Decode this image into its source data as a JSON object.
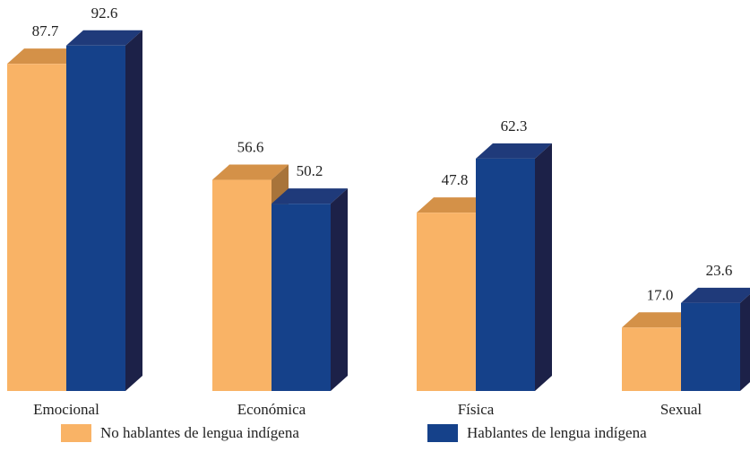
{
  "chart_data": {
    "type": "bar",
    "categories": [
      "Emocional",
      "Económica",
      "Física",
      "Sexual"
    ],
    "series": [
      {
        "name": "No hablantes de lengua indígena",
        "values": [
          87.7,
          56.6,
          47.8,
          17.0
        ],
        "color": "#F9B366",
        "top_color": "#D49148",
        "side_color": "#A8743A"
      },
      {
        "name": "Hablantes de lengua indígena",
        "values": [
          92.6,
          50.2,
          62.3,
          23.6
        ],
        "color": "#15418A",
        "top_color": "#1F3A7A",
        "side_color": "#1C2148"
      }
    ],
    "title": "",
    "xlabel": "",
    "ylabel": "",
    "ylim": [
      0,
      100
    ],
    "grid": false,
    "legend_position": "bottom",
    "value_labels": true,
    "style": "3d-bar"
  }
}
